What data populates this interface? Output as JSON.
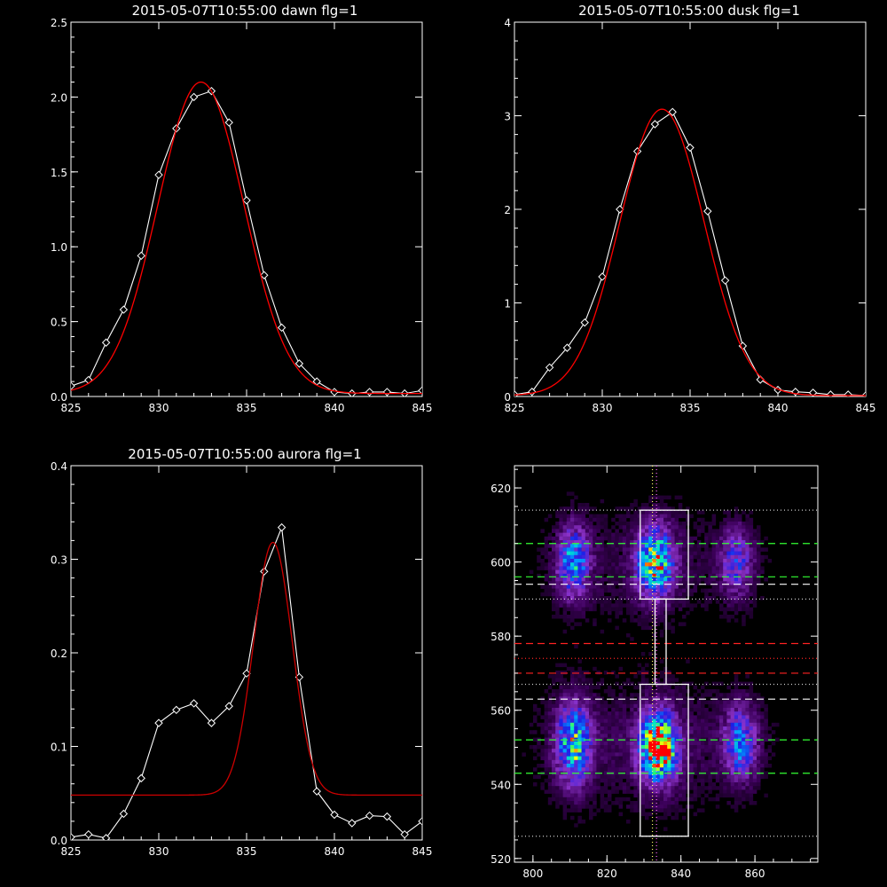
{
  "chart_data": [
    {
      "type": "line",
      "title": "2015-05-07T10:55:00 dawn flg=1",
      "xlim": [
        825,
        845
      ],
      "ylim": [
        0,
        2.5
      ],
      "xticks": [
        "825",
        "830",
        "835",
        "840",
        "845"
      ],
      "yticks": [
        "0.0",
        "0.5",
        "1.0",
        "1.5",
        "2.0",
        "2.5"
      ],
      "series": [
        {
          "kind": "observed",
          "color": "#ffffff",
          "x": [
            825,
            826,
            827,
            828,
            829,
            830,
            831,
            832,
            833,
            834,
            835,
            836,
            837,
            838,
            839,
            840,
            841,
            842,
            843,
            844,
            845
          ],
          "y": [
            0.07,
            0.11,
            0.36,
            0.58,
            0.94,
            1.48,
            1.79,
            2.0,
            2.04,
            1.83,
            1.31,
            0.81,
            0.46,
            0.22,
            0.1,
            0.03,
            0.02,
            0.03,
            0.03,
            0.02,
            0.04
          ]
        },
        {
          "kind": "gaussian-fit",
          "color": "#ff0000",
          "center": 832.4,
          "sigma": 2.45,
          "amplitude": 2.08,
          "offset": 0.02
        }
      ]
    },
    {
      "type": "line",
      "title": "2015-05-07T10:55:00 dusk flg=1",
      "xlim": [
        825,
        845
      ],
      "ylim": [
        0,
        4
      ],
      "xticks": [
        "825",
        "830",
        "835",
        "840",
        "845"
      ],
      "yticks": [
        "0",
        "1",
        "2",
        "3",
        "4"
      ],
      "series": [
        {
          "kind": "observed",
          "color": "#ffffff",
          "x": [
            825,
            826,
            827,
            828,
            829,
            830,
            831,
            832,
            833,
            834,
            835,
            836,
            837,
            838,
            839,
            840,
            841,
            842,
            843,
            844,
            845
          ],
          "y": [
            0.02,
            0.05,
            0.31,
            0.52,
            0.79,
            1.28,
            2.0,
            2.62,
            2.91,
            3.04,
            2.66,
            1.98,
            1.24,
            0.54,
            0.18,
            0.07,
            0.05,
            0.04,
            0.02,
            0.02,
            0.01
          ]
        },
        {
          "kind": "gaussian-fit",
          "color": "#ff0000",
          "center": 833.4,
          "sigma": 2.4,
          "amplitude": 3.06,
          "offset": 0.01
        }
      ]
    },
    {
      "type": "line",
      "title": "2015-05-07T10:55:00 aurora flg=1",
      "xlim": [
        825,
        845
      ],
      "ylim": [
        0,
        0.4
      ],
      "xticks": [
        "825",
        "830",
        "835",
        "840",
        "845"
      ],
      "yticks": [
        "0.0",
        "0.1",
        "0.2",
        "0.3",
        "0.4"
      ],
      "series": [
        {
          "kind": "observed",
          "color": "#ffffff",
          "x": [
            825,
            826,
            827,
            828,
            829,
            830,
            831,
            832,
            833,
            834,
            835,
            836,
            837,
            838,
            839,
            840,
            841,
            842,
            843,
            844,
            845
          ],
          "y": [
            0.003,
            0.006,
            0.002,
            0.028,
            0.066,
            0.125,
            0.139,
            0.146,
            0.125,
            0.143,
            0.178,
            0.287,
            0.334,
            0.174,
            0.052,
            0.027,
            0.018,
            0.026,
            0.025,
            0.006,
            0.02
          ]
        },
        {
          "kind": "gaussian-fit",
          "color": "#cc0000",
          "center": 836.5,
          "sigma": 1.1,
          "amplitude": 0.27,
          "offset": 0.048
        }
      ]
    },
    {
      "type": "heatmap",
      "title": "",
      "xlim": [
        795,
        877
      ],
      "ylim": [
        519,
        626
      ],
      "xticks": [
        "800",
        "820",
        "840",
        "860"
      ],
      "yticks": [
        "520",
        "540",
        "560",
        "580",
        "600",
        "620"
      ],
      "blobs": [
        {
          "cx": 811,
          "cy": 600,
          "wx": 2.8,
          "wy": 6,
          "amp": 0.55
        },
        {
          "cx": 833,
          "cy": 600,
          "wx": 3.2,
          "wy": 6,
          "amp": 0.75
        },
        {
          "cx": 855,
          "cy": 600,
          "wx": 3.0,
          "wy": 6,
          "amp": 0.35
        },
        {
          "cx": 811,
          "cy": 551,
          "wx": 3.0,
          "wy": 7,
          "amp": 0.65
        },
        {
          "cx": 834,
          "cy": 550,
          "wx": 3.2,
          "wy": 6,
          "amp": 1.0
        },
        {
          "cx": 856,
          "cy": 551,
          "wx": 3.0,
          "wy": 6.5,
          "amp": 0.45
        }
      ],
      "boxes": [
        {
          "x": [
            829,
            842
          ],
          "y": [
            590,
            614
          ]
        },
        {
          "x": [
            829,
            842
          ],
          "y": [
            526,
            567
          ]
        },
        {
          "x": [
            833,
            836
          ],
          "y": [
            567,
            590
          ]
        }
      ],
      "vlines": [
        {
          "x": 832.3,
          "color": "#ffff66"
        },
        {
          "x": 833.4,
          "color": "#ff66ff"
        }
      ],
      "hlines": [
        {
          "y": 614,
          "color": "#cccccc",
          "style": "dotted"
        },
        {
          "y": 605,
          "color": "#33ff33",
          "style": "dashed"
        },
        {
          "y": 596,
          "color": "#33ff33",
          "style": "dashed"
        },
        {
          "y": 594,
          "color": "#ffffff",
          "style": "dashed"
        },
        {
          "y": 590,
          "color": "#cccccc",
          "style": "dotted"
        },
        {
          "y": 578,
          "color": "#ff2222",
          "style": "dashed"
        },
        {
          "y": 574,
          "color": "#ff2222",
          "style": "dotted"
        },
        {
          "y": 570,
          "color": "#ff2222",
          "style": "dashed"
        },
        {
          "y": 567,
          "color": "#cccccc",
          "style": "dotted"
        },
        {
          "y": 563,
          "color": "#ffffff",
          "style": "dashed"
        },
        {
          "y": 552,
          "color": "#33ff33",
          "style": "dashed"
        },
        {
          "y": 543,
          "color": "#33ff33",
          "style": "dashed"
        },
        {
          "y": 526,
          "color": "#cccccc",
          "style": "dotted"
        }
      ]
    }
  ]
}
